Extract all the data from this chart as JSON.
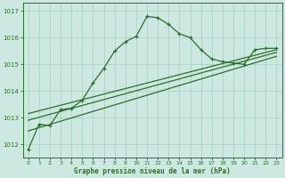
{
  "title": "Graphe pression niveau de la mer (hPa)",
  "xlim": [
    -0.5,
    23.5
  ],
  "ylim": [
    1011.5,
    1017.3
  ],
  "yticks": [
    1012,
    1013,
    1014,
    1015,
    1016,
    1017
  ],
  "xticks": [
    0,
    1,
    2,
    3,
    4,
    5,
    6,
    7,
    8,
    9,
    10,
    11,
    12,
    13,
    14,
    15,
    16,
    17,
    18,
    19,
    20,
    21,
    22,
    23
  ],
  "bg_color": "#cce8e0",
  "grid_color": "#a8cfc4",
  "line_color": "#2d6e2d",
  "main_series_x": [
    0,
    1,
    2,
    3,
    4,
    5,
    6,
    7,
    8,
    9,
    10,
    11,
    12,
    13,
    14,
    15,
    16,
    17,
    18,
    19,
    20,
    21,
    22,
    23
  ],
  "main_series_y": [
    1011.8,
    1012.75,
    1012.7,
    1013.3,
    1013.35,
    1013.65,
    1014.3,
    1014.85,
    1015.5,
    1015.85,
    1016.05,
    1016.8,
    1016.75,
    1016.5,
    1016.15,
    1016.0,
    1015.55,
    1015.2,
    1015.1,
    1015.05,
    1015.0,
    1015.55,
    1015.6,
    1015.6
  ],
  "trend_lines": [
    {
      "x0": 0,
      "y0": 1012.5,
      "x1": 23,
      "y1": 1015.3
    },
    {
      "x0": 0,
      "y0": 1012.9,
      "x1": 23,
      "y1": 1015.45
    },
    {
      "x0": 0,
      "y0": 1013.15,
      "x1": 23,
      "y1": 1015.55
    }
  ]
}
